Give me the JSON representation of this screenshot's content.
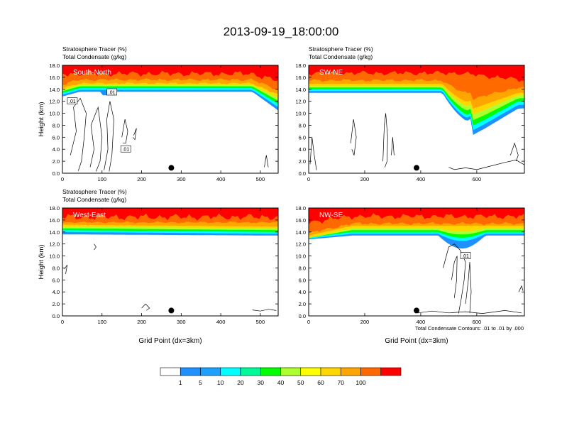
{
  "title": "2013-09-19_18:00:00",
  "footnote": "Total Condensate Contours: .01 to .01 by .000",
  "colorbar": {
    "colors": [
      "#ffffff",
      "#1e90ff",
      "#1ea0ff",
      "#00ffff",
      "#00fa9a",
      "#00ff00",
      "#adff2f",
      "#ffff00",
      "#ffd700",
      "#ffa500",
      "#ff6a00",
      "#ff0000"
    ],
    "labels": [
      "1",
      "5",
      "10",
      "20",
      "30",
      "40",
      "50",
      "60",
      "70",
      "100"
    ]
  },
  "chart_data": [
    {
      "type": "contour",
      "panel_label": "South-North",
      "left_titles": [
        "Stratosphere Tracer   (%)",
        "Total Condensate   (g/kg)"
      ],
      "ylabel": "Height (km)",
      "xlabel": "",
      "xlim": [
        0,
        545
      ],
      "ylim": [
        0,
        18
      ],
      "xticks": [
        0,
        100,
        200,
        300,
        400,
        500
      ],
      "yticks": [
        "0.0",
        "2.0",
        "4.0",
        "6.0",
        "8.0",
        "10.0",
        "12.0",
        "14.0",
        "16.0",
        "18.0"
      ],
      "marker_x": 275,
      "contour_labels": [
        ".01",
        ".01",
        ".01"
      ]
    },
    {
      "type": "contour",
      "panel_label": "SW-NE",
      "left_titles": [
        "Stratosphere Tracer   (%)",
        "Total Condensate   (g/kg)"
      ],
      "ylabel": "",
      "xlabel": "",
      "xlim": [
        0,
        770
      ],
      "ylim": [
        0,
        18
      ],
      "xticks": [
        0,
        200,
        400,
        600
      ],
      "yticks": [
        "0.0",
        "2.0",
        "4.0",
        "6.0",
        "8.0",
        "10.0",
        "12.0",
        "14.0",
        "16.0",
        "18.0"
      ],
      "marker_x": 385,
      "contour_labels": []
    },
    {
      "type": "contour",
      "panel_label": "West-East",
      "left_titles": [
        "Stratosphere Tracer   (%)",
        "Total Condensate   (g/kg)"
      ],
      "ylabel": "Height (km)",
      "xlabel": "Grid Point (dx=3km)",
      "xlim": [
        0,
        545
      ],
      "ylim": [
        0,
        18
      ],
      "xticks": [
        0,
        100,
        200,
        300,
        400,
        500
      ],
      "yticks": [
        "0.0",
        "2.0",
        "4.0",
        "6.0",
        "8.0",
        "10.0",
        "12.0",
        "14.0",
        "16.0",
        "18.0"
      ],
      "marker_x": 275,
      "contour_labels": []
    },
    {
      "type": "contour",
      "panel_label": "NW-SE",
      "left_titles": [],
      "ylabel": "",
      "xlabel": "Grid Point (dx=3km)",
      "xlim": [
        0,
        770
      ],
      "ylim": [
        0,
        18
      ],
      "xticks": [
        0,
        200,
        400,
        600
      ],
      "yticks": [
        "0.0",
        "2.0",
        "4.0",
        "6.0",
        "8.0",
        "10.0",
        "12.0",
        "14.0",
        "16.0",
        "18.0"
      ],
      "marker_x": 385,
      "contour_labels": [
        ".01"
      ]
    }
  ]
}
